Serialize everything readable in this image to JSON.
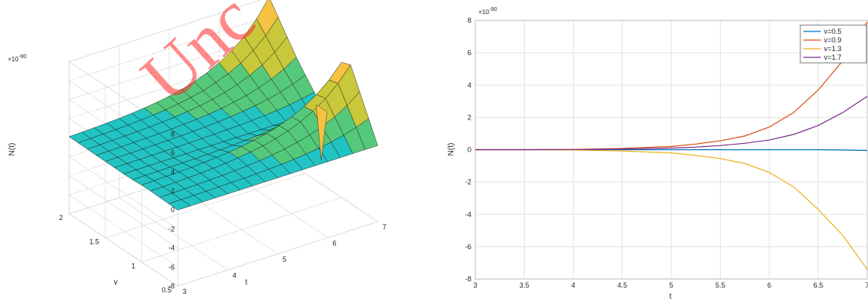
{
  "watermark": {
    "text": "Unc",
    "color": "#ff2a2a"
  },
  "chart_data": [
    {
      "type": "surface",
      "xlabel": "t",
      "ylabel": "v",
      "zlabel": "N(t)",
      "exponent_label": "×10",
      "exponent_value": "-90",
      "x_ticks": [
        "3",
        "4",
        "5",
        "6",
        "7"
      ],
      "y_ticks": [
        "0.5",
        "1",
        "1.5",
        "2"
      ],
      "z_ticks": [
        "-8",
        "-6",
        "-4",
        "-2",
        "0",
        "2",
        "4",
        "6",
        "8"
      ],
      "xlim": [
        3,
        7
      ],
      "ylim": [
        0.5,
        2
      ],
      "zlim": [
        -8,
        8
      ],
      "grid": true,
      "colormap": [
        "#3a3ef0",
        "#2f8be0",
        "#22c3c3",
        "#55c97a",
        "#c8c83a",
        "#f5c242"
      ]
    },
    {
      "type": "line",
      "xlabel": "t",
      "ylabel": "N(t)",
      "exponent_label": "×10",
      "exponent_value": "-90",
      "xlim": [
        3,
        7
      ],
      "ylim": [
        -8,
        8
      ],
      "x_ticks": [
        "3",
        "3.5",
        "4",
        "4.5",
        "5",
        "5.5",
        "6",
        "6.5",
        "7"
      ],
      "y_ticks": [
        "-8",
        "-6",
        "-4",
        "-2",
        "0",
        "2",
        "4",
        "6",
        "8"
      ],
      "grid": true,
      "legend_position": "top-right",
      "x": [
        3,
        3.5,
        4,
        4.5,
        5,
        5.25,
        5.5,
        5.75,
        6,
        6.25,
        6.5,
        6.75,
        7
      ],
      "series": [
        {
          "name": "v=0.5",
          "color": "#0072bd",
          "values": [
            0,
            0,
            0,
            0,
            0,
            0,
            0,
            0,
            0,
            0,
            0,
            -0.02,
            -0.05
          ]
        },
        {
          "name": "v=0.9",
          "color": "#d95319",
          "values": [
            0,
            0,
            0.02,
            0.08,
            0.2,
            0.35,
            0.55,
            0.85,
            1.4,
            2.3,
            3.7,
            5.5,
            7.9
          ]
        },
        {
          "name": "v=1.3",
          "color": "#edb120",
          "values": [
            0,
            0,
            -0.02,
            -0.08,
            -0.2,
            -0.35,
            -0.55,
            -0.85,
            -1.4,
            -2.3,
            -3.7,
            -5.3,
            -7.4
          ]
        },
        {
          "name": "v=1.7",
          "color": "#7e2f8e",
          "values": [
            0,
            0,
            0.01,
            0.04,
            0.1,
            0.16,
            0.26,
            0.4,
            0.6,
            0.95,
            1.5,
            2.3,
            3.3
          ]
        }
      ]
    }
  ]
}
